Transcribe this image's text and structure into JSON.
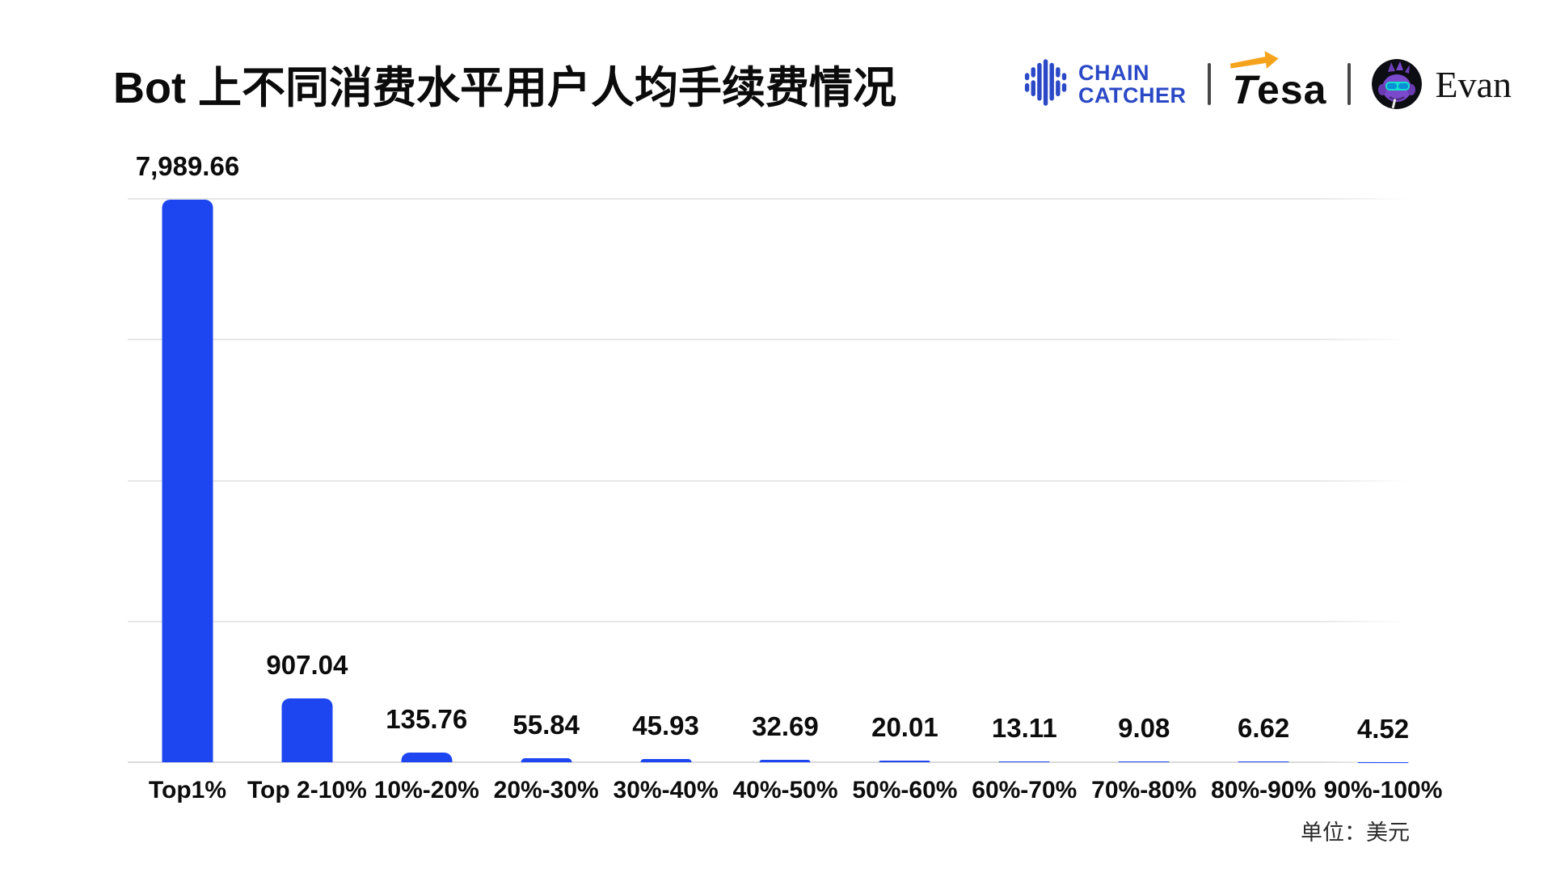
{
  "header": {
    "title": "Bot 上不同消费水平用户人均手续费情况",
    "logos": {
      "chaincatcher": {
        "line1": "CHAIN",
        "line2": "CATCHER",
        "color": "#2b49c6"
      },
      "divider": "|",
      "tesa": {
        "t": "T",
        "rest": "esa",
        "arrow_color": "#f5a31d"
      },
      "evan": {
        "name": "Evan"
      }
    }
  },
  "chart_data": {
    "type": "bar",
    "title": "Bot 上不同消费水平用户人均手续费情况",
    "categories": [
      "Top1%",
      "Top 2-10%",
      "10%-20%",
      "20%-30%",
      "30%-40%",
      "40%-50%",
      "50%-60%",
      "60%-70%",
      "70%-80%",
      "80%-90%",
      "90%-100%"
    ],
    "values": [
      7989.66,
      907.04,
      135.76,
      55.84,
      45.93,
      32.69,
      20.01,
      13.11,
      9.08,
      6.62,
      4.52
    ],
    "value_labels": [
      "7,989.66",
      "907.04",
      "135.76",
      "55.84",
      "45.93",
      "32.69",
      "20.01",
      "13.11",
      "9.08",
      "6.62",
      "4.52"
    ],
    "xlabel": "",
    "ylabel": "",
    "unit_note": "单位：美元",
    "ylim": [
      0,
      8000
    ],
    "gridline_values": [
      0,
      2000,
      4000,
      6000,
      8000
    ],
    "bar_color": "#1d46f0",
    "grid": true,
    "legend": false
  }
}
